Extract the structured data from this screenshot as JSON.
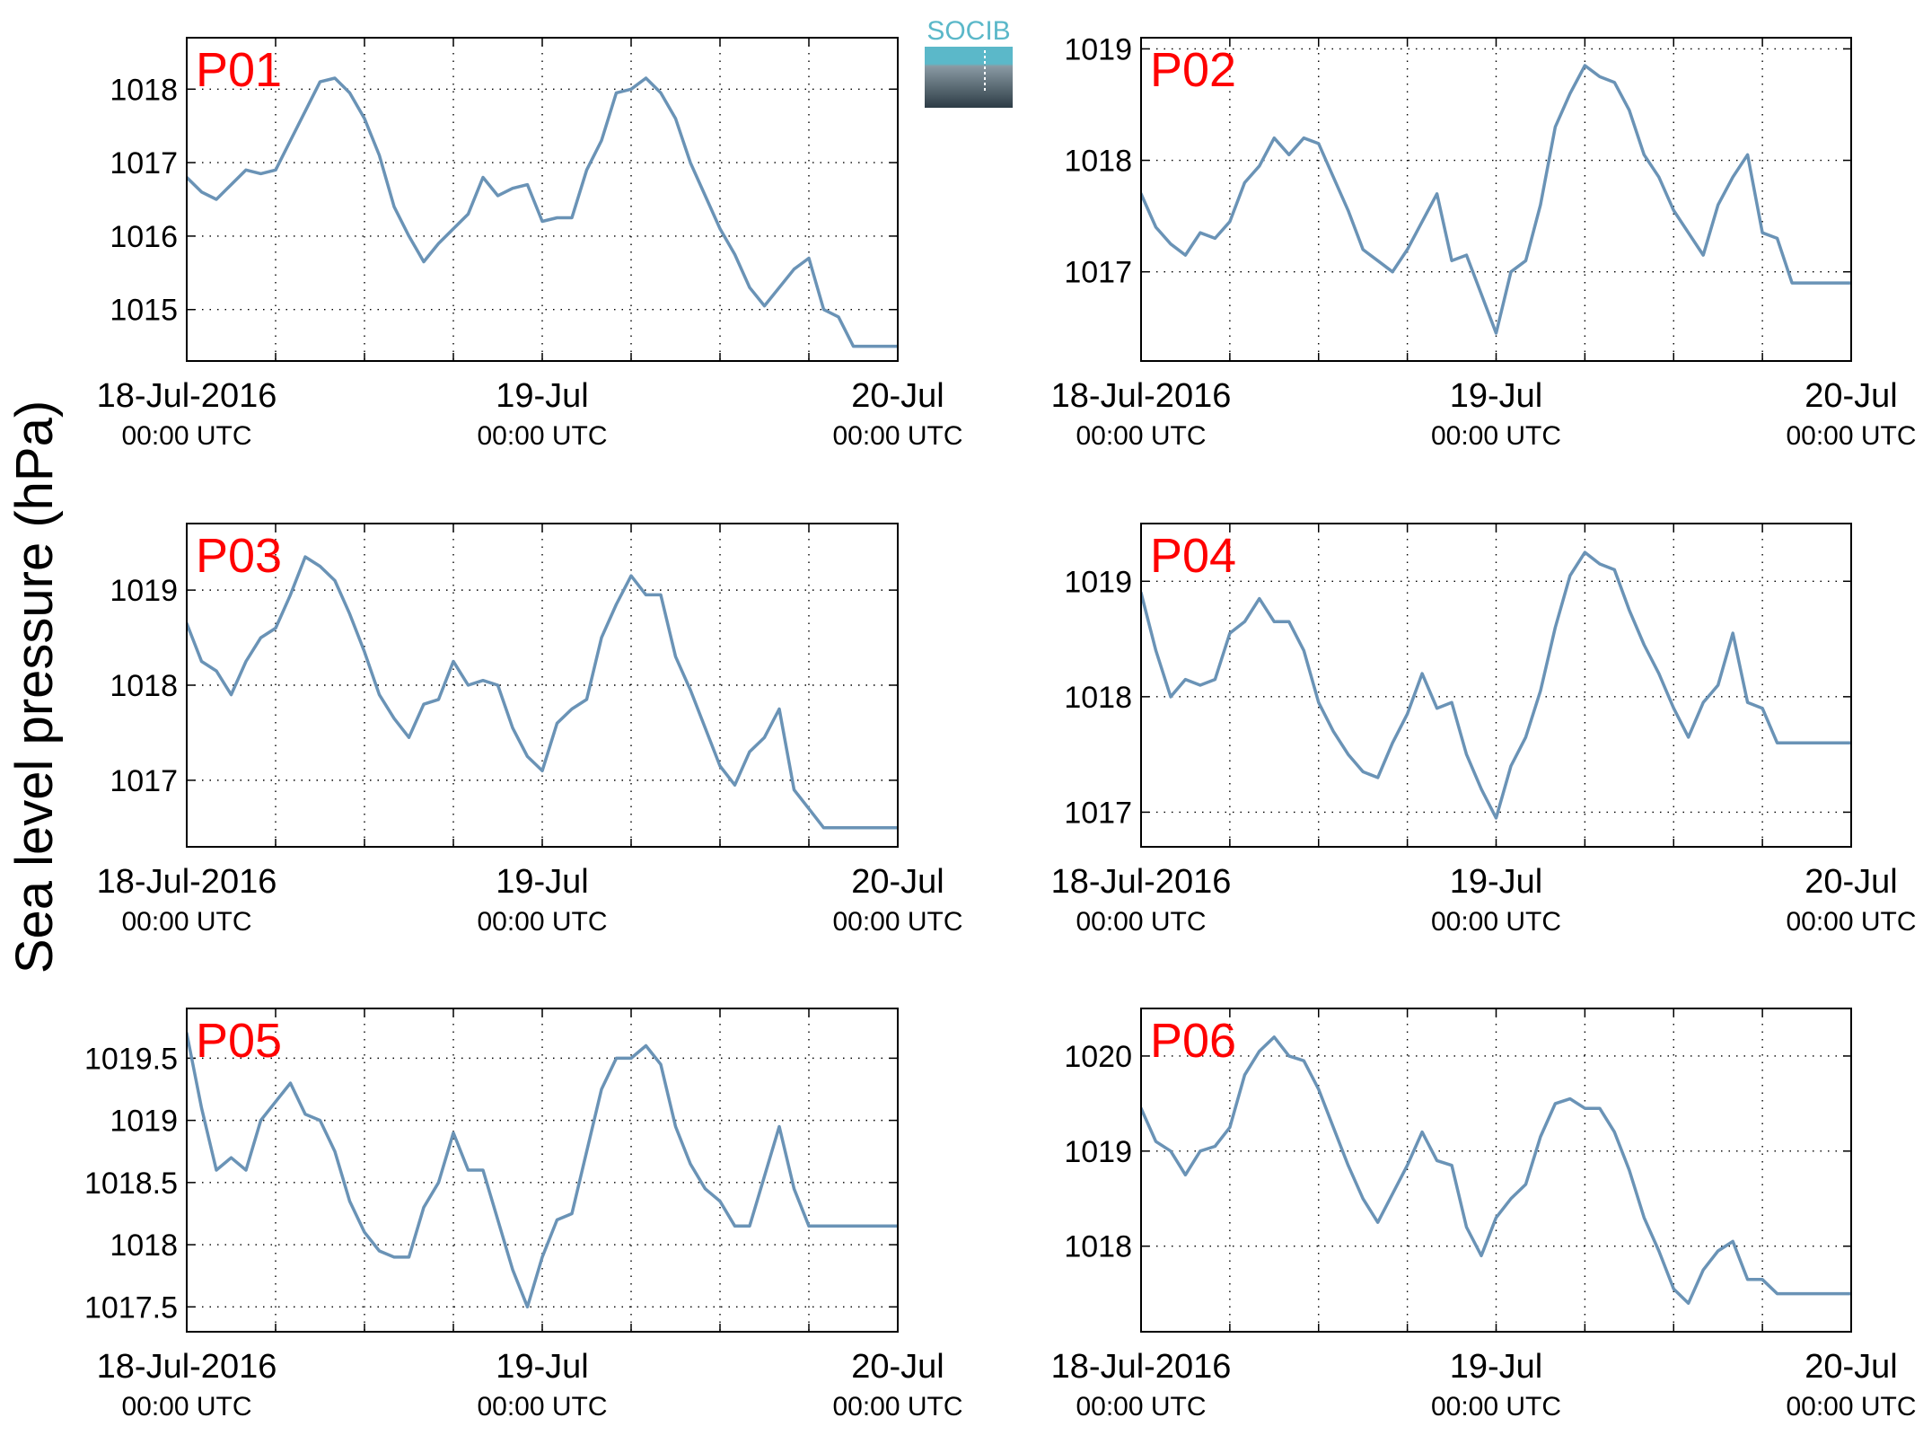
{
  "figure": {
    "ylabel": "Sea level pressure (hPa)",
    "logo_text": "SOCIB",
    "line_color": "#6a93b6",
    "label_color": "#ff0000",
    "logo_top_color": "#5bb8c9",
    "logo_bottom_color": "#2d3c46"
  },
  "chart_data": [
    {
      "type": "line",
      "title": "P01",
      "x_tick_labels": [
        [
          "18-Jul-2016",
          "00:00 UTC"
        ],
        [
          "19-Jul",
          "00:00 UTC"
        ],
        [
          "20-Jul",
          "00:00 UTC"
        ]
      ],
      "y_ticks": [
        1015,
        1016,
        1017,
        1018
      ],
      "y_tick_labels": [
        "1015",
        "1016",
        "1017",
        "1018"
      ],
      "ylim": [
        1014.3,
        1018.7
      ],
      "xlim_hours": [
        0,
        48
      ],
      "grid": true,
      "x": [
        0,
        1,
        2,
        3,
        4,
        5,
        6,
        7,
        8,
        9,
        10,
        11,
        12,
        13,
        14,
        15,
        16,
        17,
        18,
        19,
        20,
        21,
        22,
        23,
        24,
        25,
        26,
        27,
        28,
        29,
        30,
        31,
        32,
        33,
        34,
        35,
        36,
        37,
        38,
        39,
        40,
        41,
        42,
        43,
        44,
        45,
        46,
        47,
        48
      ],
      "values": [
        1016.8,
        1016.6,
        1016.5,
        1016.7,
        1016.9,
        1016.85,
        1016.9,
        1017.3,
        1017.7,
        1018.1,
        1018.15,
        1017.95,
        1017.6,
        1017.1,
        1016.4,
        1016.0,
        1015.65,
        1015.9,
        1016.1,
        1016.3,
        1016.8,
        1016.55,
        1016.65,
        1016.7,
        1016.2,
        1016.25,
        1016.25,
        1016.9,
        1017.3,
        1017.95,
        1018.0,
        1018.15,
        1017.95,
        1017.6,
        1017.0,
        1016.55,
        1016.1,
        1015.75,
        1015.3,
        1015.05,
        1015.3,
        1015.55,
        1015.7,
        1015.0,
        1014.9,
        1014.5,
        1014.5,
        1014.5,
        1014.5
      ]
    },
    {
      "type": "line",
      "title": "P02",
      "x_tick_labels": [
        [
          "18-Jul-2016",
          "00:00 UTC"
        ],
        [
          "19-Jul",
          "00:00 UTC"
        ],
        [
          "20-Jul",
          "00:00 UTC"
        ]
      ],
      "y_ticks": [
        1017,
        1018,
        1019
      ],
      "y_tick_labels": [
        "1017",
        "1018",
        "1019"
      ],
      "ylim": [
        1016.2,
        1019.1
      ],
      "xlim_hours": [
        0,
        48
      ],
      "grid": true,
      "x": [
        0,
        1,
        2,
        3,
        4,
        5,
        6,
        7,
        8,
        9,
        10,
        11,
        12,
        13,
        14,
        15,
        16,
        17,
        18,
        19,
        20,
        21,
        22,
        23,
        24,
        25,
        26,
        27,
        28,
        29,
        30,
        31,
        32,
        33,
        34,
        35,
        36,
        37,
        38,
        39,
        40,
        41,
        42,
        43,
        44,
        45,
        46,
        47,
        48
      ],
      "values": [
        1017.7,
        1017.4,
        1017.25,
        1017.15,
        1017.35,
        1017.3,
        1017.45,
        1017.8,
        1017.95,
        1018.2,
        1018.05,
        1018.2,
        1018.15,
        1017.85,
        1017.55,
        1017.2,
        1017.1,
        1017.0,
        1017.2,
        1017.45,
        1017.7,
        1017.1,
        1017.15,
        1016.8,
        1016.45,
        1017.0,
        1017.1,
        1017.6,
        1018.3,
        1018.6,
        1018.85,
        1018.75,
        1018.7,
        1018.45,
        1018.05,
        1017.85,
        1017.55,
        1017.35,
        1017.15,
        1017.6,
        1017.85,
        1018.05,
        1017.35,
        1017.3,
        1016.9,
        1016.9,
        1016.9,
        1016.9,
        1016.9
      ]
    },
    {
      "type": "line",
      "title": "P03",
      "x_tick_labels": [
        [
          "18-Jul-2016",
          "00:00 UTC"
        ],
        [
          "19-Jul",
          "00:00 UTC"
        ],
        [
          "20-Jul",
          "00:00 UTC"
        ]
      ],
      "y_ticks": [
        1017,
        1018,
        1019
      ],
      "y_tick_labels": [
        "1017",
        "1018",
        "1019"
      ],
      "ylim": [
        1016.3,
        1019.7
      ],
      "xlim_hours": [
        0,
        48
      ],
      "grid": true,
      "x": [
        0,
        1,
        2,
        3,
        4,
        5,
        6,
        7,
        8,
        9,
        10,
        11,
        12,
        13,
        14,
        15,
        16,
        17,
        18,
        19,
        20,
        21,
        22,
        23,
        24,
        25,
        26,
        27,
        28,
        29,
        30,
        31,
        32,
        33,
        34,
        35,
        36,
        37,
        38,
        39,
        40,
        41,
        42,
        43,
        44,
        45,
        46,
        47,
        48
      ],
      "values": [
        1018.65,
        1018.25,
        1018.15,
        1017.9,
        1018.25,
        1018.5,
        1018.6,
        1018.95,
        1019.35,
        1019.25,
        1019.1,
        1018.75,
        1018.35,
        1017.9,
        1017.65,
        1017.45,
        1017.8,
        1017.85,
        1018.25,
        1018.0,
        1018.05,
        1018.0,
        1017.55,
        1017.25,
        1017.1,
        1017.6,
        1017.75,
        1017.85,
        1018.5,
        1018.85,
        1019.15,
        1018.95,
        1018.95,
        1018.3,
        1017.95,
        1017.55,
        1017.15,
        1016.95,
        1017.3,
        1017.45,
        1017.75,
        1016.9,
        1016.7,
        1016.5,
        1016.5,
        1016.5,
        1016.5,
        1016.5,
        1016.5
      ]
    },
    {
      "type": "line",
      "title": "P04",
      "x_tick_labels": [
        [
          "18-Jul-2016",
          "00:00 UTC"
        ],
        [
          "19-Jul",
          "00:00 UTC"
        ],
        [
          "20-Jul",
          "00:00 UTC"
        ]
      ],
      "y_ticks": [
        1017,
        1018,
        1019
      ],
      "y_tick_labels": [
        "1017",
        "1018",
        "1019"
      ],
      "ylim": [
        1016.7,
        1019.5
      ],
      "xlim_hours": [
        0,
        48
      ],
      "grid": true,
      "x": [
        0,
        1,
        2,
        3,
        4,
        5,
        6,
        7,
        8,
        9,
        10,
        11,
        12,
        13,
        14,
        15,
        16,
        17,
        18,
        19,
        20,
        21,
        22,
        23,
        24,
        25,
        26,
        27,
        28,
        29,
        30,
        31,
        32,
        33,
        34,
        35,
        36,
        37,
        38,
        39,
        40,
        41,
        42,
        43,
        44,
        45,
        46,
        47,
        48
      ],
      "values": [
        1018.9,
        1018.4,
        1018.0,
        1018.15,
        1018.1,
        1018.15,
        1018.55,
        1018.65,
        1018.85,
        1018.65,
        1018.65,
        1018.4,
        1017.95,
        1017.7,
        1017.5,
        1017.35,
        1017.3,
        1017.6,
        1017.85,
        1018.2,
        1017.9,
        1017.95,
        1017.5,
        1017.2,
        1016.95,
        1017.4,
        1017.65,
        1018.05,
        1018.6,
        1019.05,
        1019.25,
        1019.15,
        1019.1,
        1018.75,
        1018.45,
        1018.2,
        1017.9,
        1017.65,
        1017.95,
        1018.1,
        1018.55,
        1017.95,
        1017.9,
        1017.6,
        1017.6,
        1017.6,
        1017.6,
        1017.6,
        1017.6
      ]
    },
    {
      "type": "line",
      "title": "P05",
      "x_tick_labels": [
        [
          "18-Jul-2016",
          "00:00 UTC"
        ],
        [
          "19-Jul",
          "00:00 UTC"
        ],
        [
          "20-Jul",
          "00:00 UTC"
        ]
      ],
      "y_ticks": [
        1017.5,
        1018,
        1018.5,
        1019,
        1019.5
      ],
      "y_tick_labels": [
        "1017.5",
        "1018",
        "1018.5",
        "1019",
        "1019.5"
      ],
      "ylim": [
        1017.3,
        1019.9
      ],
      "xlim_hours": [
        0,
        48
      ],
      "grid": true,
      "x": [
        0,
        1,
        2,
        3,
        4,
        5,
        6,
        7,
        8,
        9,
        10,
        11,
        12,
        13,
        14,
        15,
        16,
        17,
        18,
        19,
        20,
        21,
        22,
        23,
        24,
        25,
        26,
        27,
        28,
        29,
        30,
        31,
        32,
        33,
        34,
        35,
        36,
        37,
        38,
        39,
        40,
        41,
        42,
        43,
        44,
        45,
        46,
        47,
        48
      ],
      "values": [
        1019.7,
        1019.1,
        1018.6,
        1018.7,
        1018.6,
        1019.0,
        1019.15,
        1019.3,
        1019.05,
        1019.0,
        1018.75,
        1018.35,
        1018.1,
        1017.95,
        1017.9,
        1017.9,
        1018.3,
        1018.5,
        1018.9,
        1018.6,
        1018.6,
        1018.2,
        1017.8,
        1017.5,
        1017.9,
        1018.2,
        1018.25,
        1018.75,
        1019.25,
        1019.5,
        1019.5,
        1019.6,
        1019.45,
        1018.95,
        1018.65,
        1018.45,
        1018.35,
        1018.15,
        1018.15,
        1018.55,
        1018.95,
        1018.45,
        1018.15,
        1018.15,
        1018.15,
        1018.15,
        1018.15,
        1018.15,
        1018.15
      ]
    },
    {
      "type": "line",
      "title": "P06",
      "x_tick_labels": [
        [
          "18-Jul-2016",
          "00:00 UTC"
        ],
        [
          "19-Jul",
          "00:00 UTC"
        ],
        [
          "20-Jul",
          "00:00 UTC"
        ]
      ],
      "y_ticks": [
        1018,
        1019,
        1020
      ],
      "y_tick_labels": [
        "1018",
        "1019",
        "1020"
      ],
      "ylim": [
        1017.1,
        1020.5
      ],
      "xlim_hours": [
        0,
        48
      ],
      "grid": true,
      "x": [
        0,
        1,
        2,
        3,
        4,
        5,
        6,
        7,
        8,
        9,
        10,
        11,
        12,
        13,
        14,
        15,
        16,
        17,
        18,
        19,
        20,
        21,
        22,
        23,
        24,
        25,
        26,
        27,
        28,
        29,
        30,
        31,
        32,
        33,
        34,
        35,
        36,
        37,
        38,
        39,
        40,
        41,
        42,
        43,
        44,
        45,
        46,
        47,
        48
      ],
      "values": [
        1019.45,
        1019.1,
        1019.0,
        1018.75,
        1019.0,
        1019.05,
        1019.25,
        1019.8,
        1020.05,
        1020.2,
        1020.0,
        1019.95,
        1019.65,
        1019.25,
        1018.85,
        1018.5,
        1018.25,
        1018.55,
        1018.85,
        1019.2,
        1018.9,
        1018.85,
        1018.2,
        1017.9,
        1018.3,
        1018.5,
        1018.65,
        1019.15,
        1019.5,
        1019.55,
        1019.45,
        1019.45,
        1019.2,
        1018.8,
        1018.3,
        1017.95,
        1017.55,
        1017.4,
        1017.75,
        1017.95,
        1018.05,
        1017.65,
        1017.65,
        1017.5,
        1017.5,
        1017.5,
        1017.5,
        1017.5,
        1017.5
      ]
    }
  ]
}
